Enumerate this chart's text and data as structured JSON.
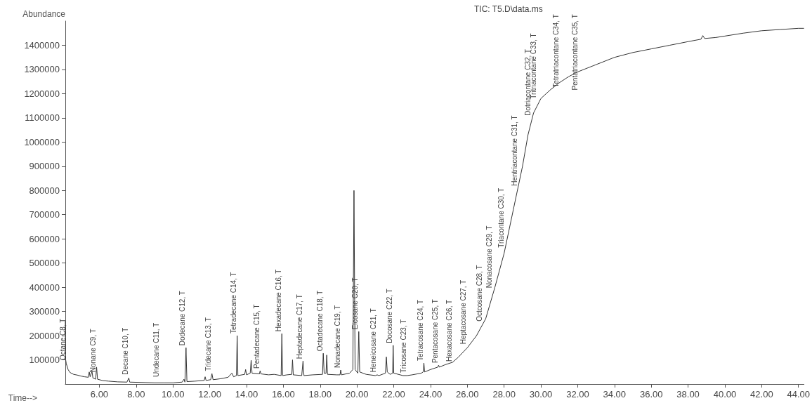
{
  "chart_data": {
    "type": "line",
    "title": "TIC: T5.D\\data.ms",
    "xlabel": "Time-->",
    "ylabel": "Abundance",
    "x": [
      4.15,
      4.17,
      4.2,
      4.3,
      4.4,
      4.6,
      4.8,
      5.0,
      5.2,
      5.4,
      5.45,
      5.5,
      5.6,
      5.65,
      5.8,
      5.85,
      5.9,
      6.2,
      6.5,
      7.0,
      7.5,
      7.6,
      7.65,
      8.5,
      9.0,
      9.5,
      10.0,
      10.5,
      10.6,
      10.65,
      10.71,
      10.76,
      11.2,
      11.7,
      11.75,
      11.8,
      12.05,
      12.12,
      12.18,
      12.6,
      13.0,
      13.2,
      13.3,
      13.45,
      13.49,
      13.53,
      13.9,
      13.95,
      14.0,
      14.2,
      14.25,
      14.3,
      14.7,
      14.74,
      14.78,
      15.2,
      15.5,
      15.88,
      15.92,
      15.96,
      16.2,
      16.46,
      16.5,
      16.54,
      17.0,
      17.07,
      17.12,
      17.6,
      18.13,
      18.17,
      18.22,
      18.32,
      18.36,
      18.4,
      18.9,
      19.08,
      19.12,
      19.16,
      19.6,
      19.78,
      19.84,
      19.9,
      20.05,
      20.1,
      20.15,
      20.5,
      21.0,
      21.1,
      21.2,
      21.55,
      21.6,
      21.65,
      21.8,
      21.94,
      21.97,
      22.0,
      22.5,
      22.73,
      23.0,
      23.5,
      23.6,
      23.64,
      23.68,
      24.0,
      24.4,
      24.44,
      24.48,
      24.8,
      25.2,
      25.5,
      26.0,
      26.5,
      27.0,
      27.5,
      28.0,
      28.5,
      29.0,
      29.3,
      29.6,
      30.0,
      30.5,
      31.0,
      31.5,
      32.0,
      33.0,
      34.0,
      35.0,
      36.0,
      37.0,
      38.0,
      38.7,
      38.8,
      38.9,
      39.5,
      40.0,
      41.0,
      42.0,
      43.0,
      44.0,
      44.3
    ],
    "values": [
      260000,
      100000,
      85000,
      60000,
      48000,
      40000,
      37000,
      33000,
      30000,
      28000,
      50000,
      30000,
      52000,
      25000,
      20000,
      70000,
      20000,
      14000,
      12000,
      9000,
      8000,
      25000,
      8000,
      6000,
      5000,
      5000,
      5000,
      8000,
      20000,
      8000,
      150000,
      10000,
      12000,
      15000,
      30000,
      15000,
      18000,
      43000,
      18000,
      22000,
      28000,
      45000,
      30000,
      35000,
      200000,
      35000,
      40000,
      60000,
      38000,
      45000,
      98000,
      45000,
      42000,
      55000,
      42000,
      38000,
      40000,
      35000,
      208000,
      35000,
      38000,
      40000,
      100000,
      38000,
      35000,
      95000,
      35000,
      38000,
      40000,
      127000,
      45000,
      45000,
      120000,
      40000,
      38000,
      38000,
      58000,
      38000,
      45000,
      60000,
      800000,
      60000,
      45000,
      217000,
      50000,
      40000,
      35000,
      38000,
      35000,
      45000,
      112000,
      50000,
      40000,
      45000,
      160000,
      45000,
      35000,
      35000,
      38000,
      45000,
      50000,
      87000,
      50000,
      60000,
      70000,
      78000,
      70000,
      80000,
      90000,
      110000,
      150000,
      200000,
      270000,
      400000,
      540000,
      720000,
      900000,
      1030000,
      1120000,
      1180000,
      1215000,
      1245000,
      1270000,
      1290000,
      1320000,
      1350000,
      1370000,
      1385000,
      1400000,
      1415000,
      1425000,
      1440000,
      1428000,
      1432000,
      1438000,
      1450000,
      1460000,
      1465000,
      1470000,
      1470000
    ],
    "color": "#333333",
    "marker": "none",
    "grid": false,
    "xlim": [
      4.15,
      44.3
    ],
    "ylim": [
      0,
      1500000
    ],
    "xticks": [
      {
        "value": 6,
        "label": "6.00"
      },
      {
        "value": 8,
        "label": "8.00"
      },
      {
        "value": 10,
        "label": "10.00"
      },
      {
        "value": 12,
        "label": "12.00"
      },
      {
        "value": 14,
        "label": "14.00"
      },
      {
        "value": 16,
        "label": "16.00"
      },
      {
        "value": 18,
        "label": "18.00"
      },
      {
        "value": 20,
        "label": "20.00"
      },
      {
        "value": 22,
        "label": "22.00"
      },
      {
        "value": 24,
        "label": "24.00"
      },
      {
        "value": 26,
        "label": "26.00"
      },
      {
        "value": 28,
        "label": "28.00"
      },
      {
        "value": 30,
        "label": "30.00"
      },
      {
        "value": 32,
        "label": "32.00"
      },
      {
        "value": 34,
        "label": "34.00"
      },
      {
        "value": 36,
        "label": "36.00"
      },
      {
        "value": 38,
        "label": "38.00"
      },
      {
        "value": 40,
        "label": "40.00"
      },
      {
        "value": 42,
        "label": "42.00"
      },
      {
        "value": 44,
        "label": "44.00"
      }
    ],
    "yticks": [
      100000,
      200000,
      300000,
      400000,
      500000,
      600000,
      700000,
      800000,
      900000,
      1000000,
      1100000,
      1200000,
      1300000,
      1400000
    ],
    "annotations": [
      {
        "text": "Octane C8, T",
        "x": 4.2,
        "y": 90000
      },
      {
        "text": "Nonane C9, T",
        "x": 5.85,
        "y": 40000
      },
      {
        "text": "Decane C10, T",
        "x": 7.6,
        "y": 30000
      },
      {
        "text": "Undecane C11, T",
        "x": 9.3,
        "y": 20000
      },
      {
        "text": "Dodecane C12, T",
        "x": 10.71,
        "y": 150000
      },
      {
        "text": "Tridecane C13, T",
        "x": 12.12,
        "y": 45000
      },
      {
        "text": "Tetradecane C14, T",
        "x": 13.49,
        "y": 200000
      },
      {
        "text": "Pentadecane C15, T",
        "x": 14.74,
        "y": 55000
      },
      {
        "text": "Hexadecane C16, T",
        "x": 15.92,
        "y": 208000
      },
      {
        "text": "Heptadecane C17, T",
        "x": 17.07,
        "y": 95000
      },
      {
        "text": "Octadecane C18, T",
        "x": 18.17,
        "y": 127000
      },
      {
        "text": "Nonadecane C19, T",
        "x": 19.12,
        "y": 58000
      },
      {
        "text": "Eicosane C20, T",
        "x": 20.1,
        "y": 217000
      },
      {
        "text": "Heneicosane C21, T",
        "x": 21.1,
        "y": 40000
      },
      {
        "text": "Docosane C22, T",
        "x": 21.97,
        "y": 160000
      },
      {
        "text": "Tricosane C23, T",
        "x": 22.73,
        "y": 38000
      },
      {
        "text": "Tetracosane C24, T",
        "x": 23.64,
        "y": 87000
      },
      {
        "text": "Pentacosane C25, T",
        "x": 24.44,
        "y": 78000
      },
      {
        "text": "Hexacosane C26, T",
        "x": 25.2,
        "y": 84000
      },
      {
        "text": "Heptacosane C27, T",
        "x": 25.96,
        "y": 156000
      },
      {
        "text": "Octcosane C28, T",
        "x": 26.84,
        "y": 250000
      },
      {
        "text": "Nonacosane C29, T",
        "x": 27.4,
        "y": 388000
      },
      {
        "text": "Triacontane C30, T",
        "x": 28.05,
        "y": 555000
      },
      {
        "text": "Hentriacontane C31, T",
        "x": 28.74,
        "y": 810000
      },
      {
        "text": "Dotriacontane C32, T",
        "x": 29.5,
        "y": 1100000
      },
      {
        "text": "Tritriacontane C33, T",
        "x": 29.8,
        "y": 1170000
      },
      {
        "text": "Tetratriacontane C34, T",
        "x": 31.0,
        "y": 1245000
      },
      {
        "text": "Pentatriacontane C35, T",
        "x": 32.05,
        "y": 1300000
      }
    ]
  }
}
